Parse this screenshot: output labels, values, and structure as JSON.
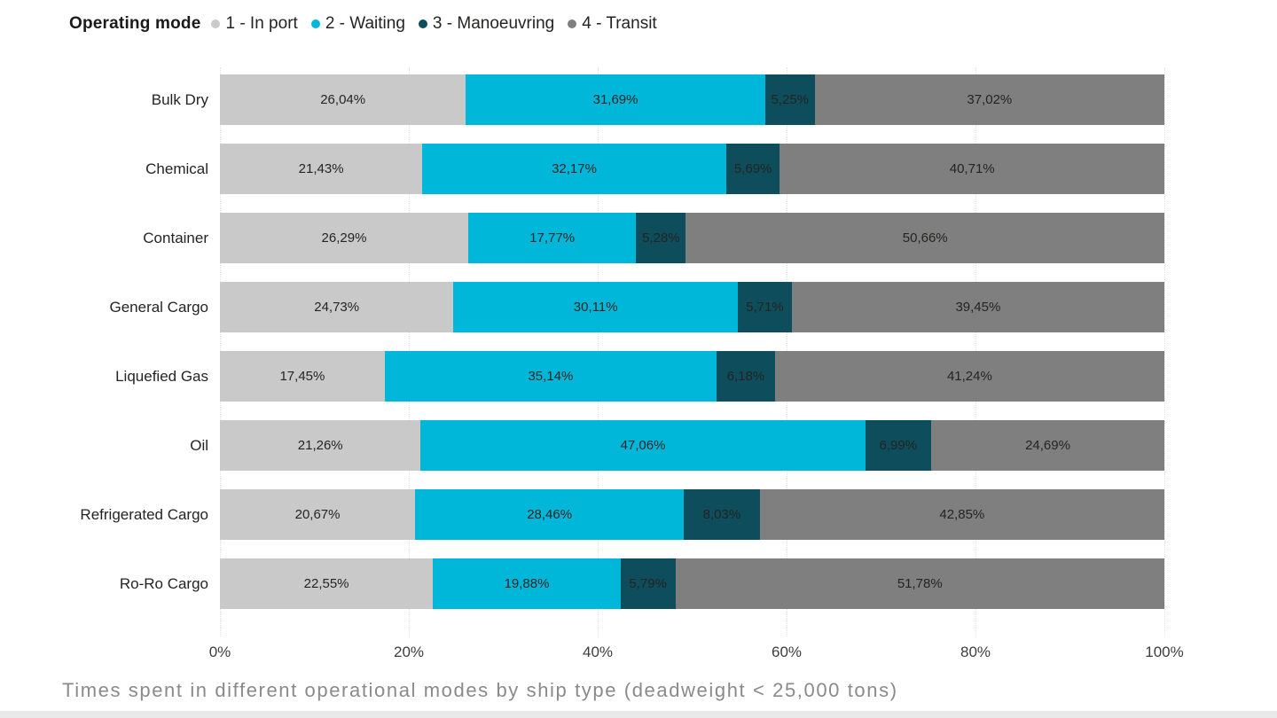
{
  "legend": {
    "title": "Operating mode",
    "items": [
      {
        "label": "1 - In port",
        "color": "#c9c9c9"
      },
      {
        "label": "2 - Waiting",
        "color": "#00b7d9"
      },
      {
        "label": "3 - Manoeuvring",
        "color": "#0d4d5c"
      },
      {
        "label": "4 - Transit",
        "color": "#7f7f7f"
      }
    ]
  },
  "chart_data": {
    "type": "bar",
    "orientation": "horizontal",
    "stacked": true,
    "stack_total": 100,
    "categories": [
      "Bulk Dry",
      "Chemical",
      "Container",
      "General Cargo",
      "Liquefied Gas",
      "Oil",
      "Refrigerated Cargo",
      "Ro-Ro Cargo"
    ],
    "series": [
      {
        "name": "1 - In port",
        "color": "#c9c9c9",
        "values": [
          26.04,
          21.43,
          26.29,
          24.73,
          17.45,
          21.26,
          20.67,
          22.55
        ]
      },
      {
        "name": "2 - Waiting",
        "color": "#00b7d9",
        "values": [
          31.69,
          32.17,
          17.77,
          30.11,
          35.14,
          47.06,
          28.46,
          19.88
        ]
      },
      {
        "name": "3 - Manoeuvring",
        "color": "#0d4d5c",
        "values": [
          5.25,
          5.69,
          5.28,
          5.71,
          6.18,
          6.99,
          8.03,
          5.79
        ]
      },
      {
        "name": "4 - Transit",
        "color": "#7f7f7f",
        "values": [
          37.02,
          40.71,
          50.66,
          39.45,
          41.24,
          24.69,
          42.85,
          51.78
        ]
      }
    ],
    "x_ticks": [
      "0%",
      "20%",
      "40%",
      "60%",
      "80%",
      "100%"
    ],
    "xlim": [
      0,
      100
    ],
    "grid": "vertical-dotted",
    "legend_position": "top-left",
    "value_format": "comma-decimal percent, 2 dp",
    "title": "Times spent in different operational modes by ship type (deadweight < 25,000 tons)"
  },
  "caption": "Times spent in different operational modes by ship type (deadweight < 25,000 tons)"
}
